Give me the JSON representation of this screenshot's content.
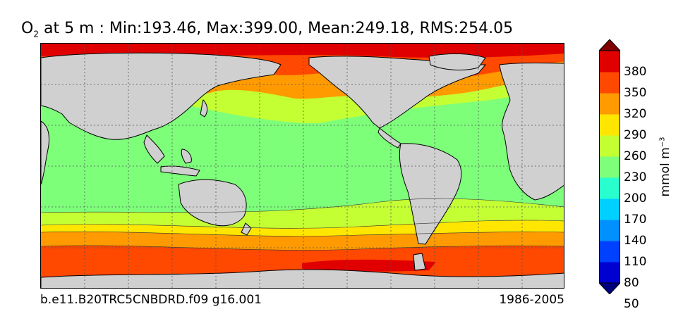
{
  "title": {
    "prefix": "O",
    "subscript": "2",
    "text": " at 5 m : Min:193.46, Max:399.00, Mean:249.18, RMS:254.05"
  },
  "footer": {
    "case_name": "b.e11.B20TRC5CNBDRD.f09 g16.001",
    "period": "1986-2005"
  },
  "colorbar": {
    "unit_base": "mmol m",
    "unit_exponent": "−3",
    "ticks": [
      "380",
      "350",
      "320",
      "290",
      "260",
      "230",
      "200",
      "170",
      "140",
      "110",
      "80",
      "50"
    ],
    "colors": [
      "#00007f",
      "#0000d0",
      "#0040ff",
      "#0090ff",
      "#00d0ff",
      "#29ffce",
      "#7dff7a",
      "#c4ff33",
      "#ffe600",
      "#ff9a00",
      "#ff4800",
      "#e00000",
      "#800000"
    ]
  },
  "map": {
    "land_color": "#d0d0d0",
    "grid": true
  }
}
